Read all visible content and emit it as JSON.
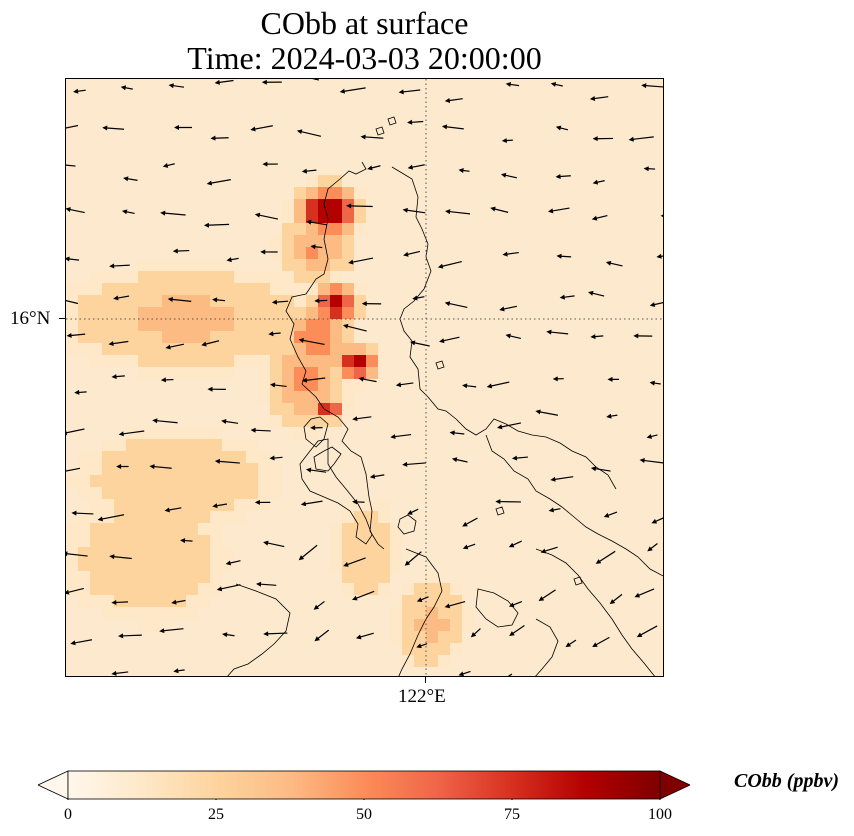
{
  "title": {
    "line1": "CObb at surface",
    "line2": "Time: 2024-03-03 20:00:00"
  },
  "map": {
    "lat_tick_label": "16°N",
    "lon_tick_label": "122°E",
    "gridline_style": "dotted",
    "coastline_color": "#000000"
  },
  "colorbar": {
    "label": "CObb (ppbv)",
    "min": 0,
    "max": 100,
    "extend": "both",
    "colormap": "OrRd",
    "ticks": [
      "0",
      "25",
      "50",
      "75",
      "100"
    ],
    "colors": [
      "#fff7ec",
      "#fee8c8",
      "#fdd49e",
      "#fdbb84",
      "#fc8d59",
      "#ef6548",
      "#d7301f",
      "#b30000",
      "#7f0000"
    ]
  }
}
